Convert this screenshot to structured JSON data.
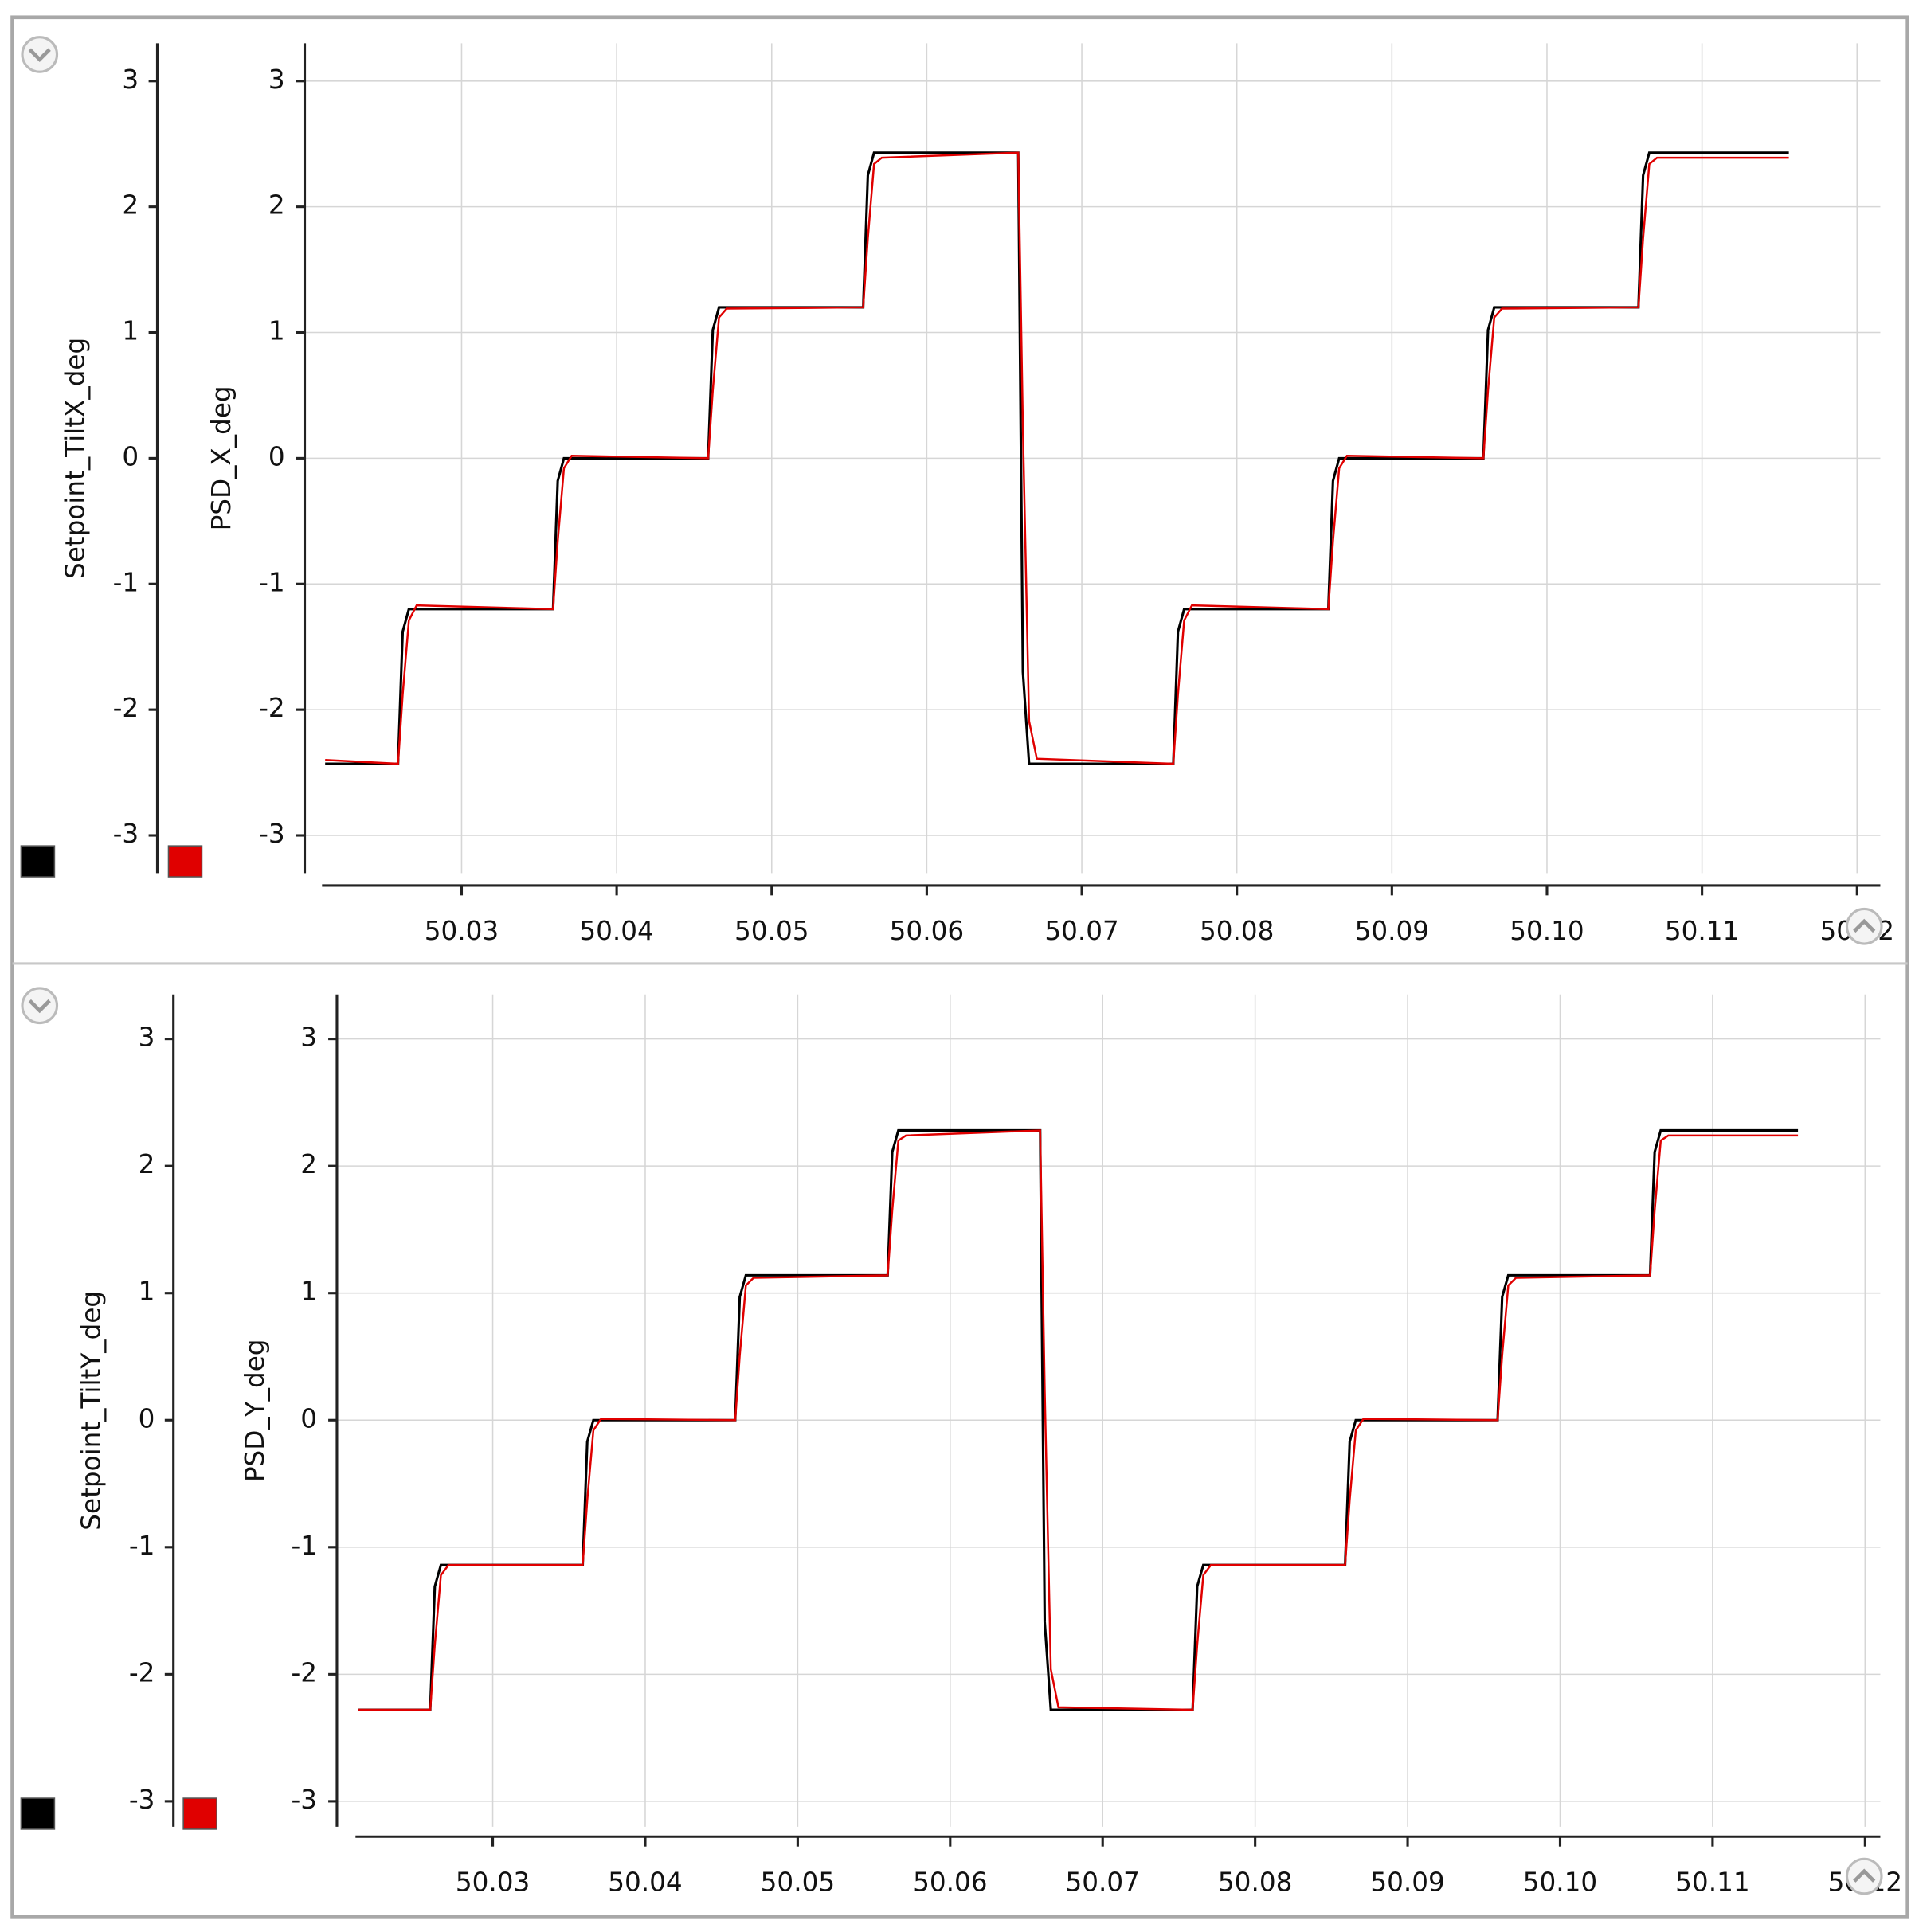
{
  "chart_data": [
    {
      "type": "line",
      "ylabel": "Setpoint_TiltX_deg",
      "y2label": "PSD_X_deg",
      "x": [
        50.0212,
        50.0259,
        50.0262,
        50.0266,
        50.0271,
        50.0359,
        50.0362,
        50.0366,
        50.0371,
        50.0459,
        50.0462,
        50.0466,
        50.0471,
        50.0559,
        50.0562,
        50.0566,
        50.0571,
        50.0659,
        50.0662,
        50.0666,
        50.0671,
        50.0759,
        50.0762,
        50.0766,
        50.0771,
        50.0859,
        50.0862,
        50.0866,
        50.0871,
        50.0959,
        50.0962,
        50.0966,
        50.0971,
        50.1059,
        50.1062,
        50.1066,
        50.1071,
        50.1156
      ],
      "series": [
        {
          "color": "#000000",
          "values": [
            -2.43,
            -2.43,
            -1.38,
            -1.2,
            -1.2,
            -1.2,
            -0.18,
            0,
            0,
            0,
            1.02,
            1.2,
            1.2,
            1.2,
            2.25,
            2.43,
            2.43,
            2.43,
            -1.7,
            -2.43,
            -2.43,
            -2.43,
            -1.38,
            -1.2,
            -1.2,
            -1.2,
            -0.18,
            0,
            0,
            0,
            1.02,
            1.2,
            1.2,
            1.2,
            2.25,
            2.43,
            2.43,
            2.43
          ]
        },
        {
          "color": "#e00000",
          "axis": "y2",
          "values": [
            -2.4,
            -2.43,
            -1.88,
            -1.29,
            -1.17,
            -1.2,
            -0.66,
            -0.08,
            0.02,
            0,
            0.54,
            1.12,
            1.19,
            1.2,
            1.75,
            2.34,
            2.39,
            2.43,
            0.24,
            -2.09,
            -2.39,
            -2.43,
            -1.88,
            -1.29,
            -1.17,
            -1.2,
            -0.66,
            -0.08,
            0.02,
            0,
            0.54,
            1.12,
            1.19,
            1.2,
            1.75,
            2.34,
            2.39,
            2.39
          ]
        }
      ],
      "xlim": [
        50.021,
        50.1215
      ],
      "xticks": [
        50.03,
        50.04,
        50.05,
        50.06,
        50.07,
        50.08,
        50.09,
        {
          "value": 50.1,
          "label": "50.10"
        },
        50.11,
        50.12
      ],
      "ylim": [
        -3.3,
        3.3
      ],
      "yticks": [
        -3,
        -2,
        -1,
        0,
        1,
        2,
        3
      ],
      "y2lim": [
        -3.3,
        3.3
      ],
      "y2ticks": [
        -3,
        -2,
        -1,
        0,
        1,
        2,
        3
      ],
      "grid": true
    },
    {
      "type": "line",
      "ylabel": "Setpoint_TiltY_deg",
      "y2label": "PSD_Y_deg",
      "x": [
        50.0212,
        50.0259,
        50.0262,
        50.0266,
        50.0271,
        50.0359,
        50.0362,
        50.0366,
        50.0371,
        50.0459,
        50.0462,
        50.0466,
        50.0471,
        50.0559,
        50.0562,
        50.0566,
        50.0571,
        50.0659,
        50.0662,
        50.0666,
        50.0671,
        50.0759,
        50.0762,
        50.0766,
        50.0771,
        50.0859,
        50.0862,
        50.0866,
        50.0871,
        50.0959,
        50.0962,
        50.0966,
        50.0971,
        50.1059,
        50.1062,
        50.1066,
        50.1071,
        50.1156
      ],
      "series": [
        {
          "color": "#000000",
          "values": [
            -2.28,
            -2.28,
            -1.31,
            -1.14,
            -1.14,
            -1.14,
            -0.17,
            0,
            0,
            0,
            0.97,
            1.14,
            1.14,
            1.14,
            2.11,
            2.28,
            2.28,
            2.28,
            -1.59,
            -2.28,
            -2.28,
            -2.28,
            -1.31,
            -1.14,
            -1.14,
            -1.14,
            -0.17,
            0,
            0,
            0,
            0.97,
            1.14,
            1.14,
            1.14,
            2.11,
            2.28,
            2.28,
            2.28
          ]
        },
        {
          "color": "#e00000",
          "axis": "y2",
          "values": [
            -2.28,
            -2.28,
            -1.77,
            -1.22,
            -1.14,
            -1.14,
            -0.63,
            -0.08,
            0.01,
            0,
            0.51,
            1.06,
            1.12,
            1.14,
            1.65,
            2.2,
            2.24,
            2.28,
            0.23,
            -1.96,
            -2.26,
            -2.28,
            -1.77,
            -1.22,
            -1.14,
            -1.14,
            -0.63,
            -0.08,
            0.01,
            0,
            0.51,
            1.06,
            1.12,
            1.14,
            1.65,
            2.2,
            2.24,
            2.24
          ]
        }
      ],
      "xlim": [
        50.021,
        50.121
      ],
      "xticks": [
        50.03,
        50.04,
        50.05,
        50.06,
        50.07,
        50.08,
        50.09,
        {
          "value": 50.1,
          "label": "50.10"
        },
        50.11,
        50.12
      ],
      "ylim": [
        -3.2,
        3.35
      ],
      "yticks": [
        -3,
        -2,
        -1,
        0,
        1,
        2,
        3
      ],
      "y2lim": [
        -3.2,
        3.35
      ],
      "y2ticks": [
        -3,
        -2,
        -1,
        0,
        1,
        2,
        3
      ],
      "grid": true
    }
  ]
}
